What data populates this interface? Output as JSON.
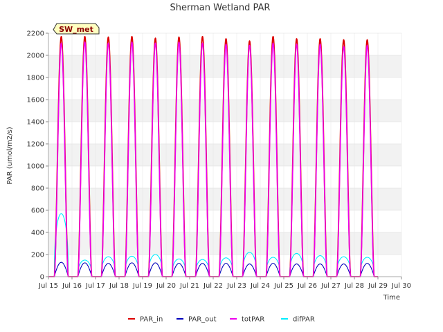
{
  "chart_data": {
    "type": "line",
    "title": "Sherman Wetland PAR",
    "xlabel": "Time",
    "ylabel": "PAR (umol/m2/s)",
    "badge": "SW_met",
    "xlim": [
      15,
      30
    ],
    "ylim": [
      0,
      2200
    ],
    "x_ticks": [
      15,
      16,
      17,
      18,
      19,
      20,
      21,
      22,
      23,
      24,
      25,
      26,
      27,
      28,
      29,
      30
    ],
    "x_tick_labels": [
      "Jul 15",
      "Jul 16",
      "Jul 17",
      "Jul 18",
      "Jul 19",
      "Jul 20",
      "Jul 21",
      "Jul 22",
      "Jul 23",
      "Jul 24",
      "Jul 25",
      "Jul 26",
      "Jul 27",
      "Jul 28",
      "Jul 29",
      "Jul 30"
    ],
    "y_ticks": [
      0,
      200,
      400,
      600,
      800,
      1000,
      1200,
      1400,
      1600,
      1800,
      2000,
      2200
    ],
    "grid": true,
    "legend_position": "bottom",
    "days": [
      15,
      16,
      17,
      18,
      19,
      20,
      21,
      22,
      23,
      24,
      25,
      26,
      27,
      28
    ],
    "series": [
      {
        "name": "PAR_in",
        "color": "#dd0000",
        "daily_peak": [
          2170,
          2170,
          2165,
          2170,
          2155,
          2165,
          2170,
          2150,
          2130,
          2170,
          2150,
          2150,
          2140,
          2140
        ]
      },
      {
        "name": "PAR_out",
        "color": "#0000bb",
        "daily_peak": [
          130,
          125,
          120,
          125,
          125,
          120,
          120,
          120,
          115,
          120,
          115,
          115,
          115,
          120
        ]
      },
      {
        "name": "totPAR",
        "color": "#ee00ee",
        "daily_peak": [
          2110,
          2120,
          2110,
          2120,
          2110,
          2120,
          2110,
          2100,
          2090,
          2110,
          2100,
          2100,
          2080,
          2090
        ]
      },
      {
        "name": "difPAR",
        "color": "#00eeff",
        "daily_peak": [
          570,
          150,
          180,
          185,
          200,
          160,
          155,
          170,
          220,
          175,
          210,
          190,
          180,
          175
        ]
      }
    ]
  }
}
